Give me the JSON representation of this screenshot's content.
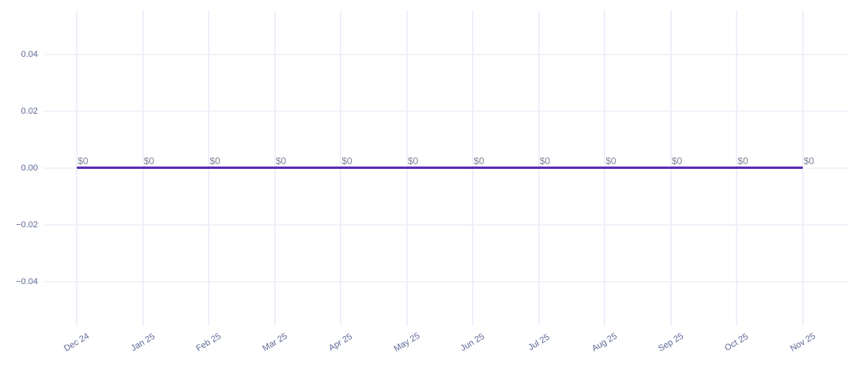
{
  "chart_data": {
    "type": "line",
    "title": "",
    "xlabel": "",
    "ylabel": "",
    "categories": [
      "Dec 24",
      "Jan 25",
      "Feb 25",
      "Mar 25",
      "Apr 25",
      "May 25",
      "Jun 25",
      "Jul 25",
      "Aug 25",
      "Sep 25",
      "Oct 25",
      "Nov 25"
    ],
    "series": [
      {
        "name": "",
        "values": [
          0,
          0,
          0,
          0,
          0,
          0,
          0,
          0,
          0,
          0,
          0,
          0
        ]
      }
    ],
    "point_labels": [
      "$0",
      "$0",
      "$0",
      "$0",
      "$0",
      "$0",
      "$0",
      "$0",
      "$0",
      "$0",
      "$0",
      "$0"
    ],
    "y_ticks": [
      0.04,
      0.02,
      0,
      -0.02,
      -0.04
    ],
    "y_tick_labels": [
      "0.04",
      "0.02",
      "0.00",
      "−0.02",
      "−0.04"
    ],
    "ylim": [
      -0.05,
      0.05
    ],
    "grid": true,
    "legend": "none",
    "colors": {
      "line": "#5c2db2",
      "grid_vertical": "#f1eefa",
      "grid_horizontal": "#f4f2fa",
      "axis_label": "#5e6896",
      "data_label": "#7e8398",
      "background": "#ffffff"
    }
  }
}
